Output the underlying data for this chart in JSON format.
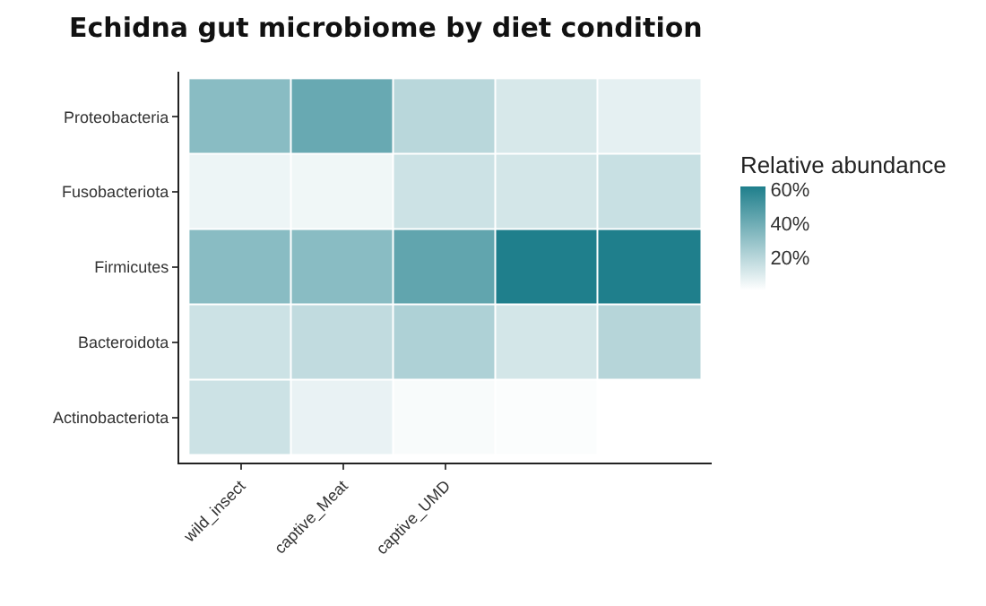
{
  "chart_data": {
    "type": "heatmap",
    "title": "Echidna gut microbiome by diet condition",
    "categories": [
      "wild_insect",
      "captive_Meat",
      "captive_UMD",
      null,
      null
    ],
    "y_categories": [
      "Proteobacteria",
      "Fusobacteriota",
      "Firmicutes",
      "Bacteroidota",
      "Actinobacteriota"
    ],
    "cells": [
      [
        33,
        42,
        20,
        12,
        8
      ],
      [
        6,
        5,
        15,
        13,
        16
      ],
      [
        33,
        33,
        44,
        62,
        62
      ],
      [
        15,
        18,
        23,
        13,
        21
      ],
      [
        15,
        7,
        3,
        2,
        1
      ]
    ],
    "clabel": "Relative abundance",
    "clim": [
      1,
      62
    ],
    "cticks": [
      {
        "value": 20,
        "label": "20%"
      },
      {
        "value": 40,
        "label": "40%"
      },
      {
        "value": 60,
        "label": "60%"
      }
    ],
    "colors": [
      "#ffffff",
      "#1f7f8c"
    ]
  }
}
